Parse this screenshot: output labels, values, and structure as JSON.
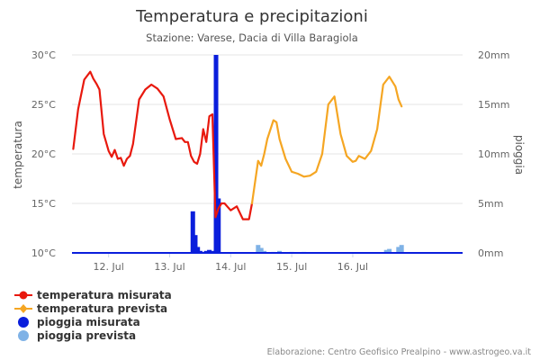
{
  "chart_data": {
    "type": "line",
    "title": "Temperatura e precipitazioni",
    "subtitle": "Stazione: Varese, Dacia di Villa Baragiola",
    "credits": "Elaborazione: Centro Geofisico Prealpino - www.astrogeo.va.it",
    "x_ticks": [
      "12. Jul",
      "13. Jul",
      "14. Jul",
      "15. Jul",
      "16. Jul"
    ],
    "x_tick_days": [
      12,
      13,
      14,
      15,
      16
    ],
    "xlim": [
      11.4,
      17.8
    ],
    "y_left": {
      "label": "temperatura",
      "ticks": [
        "10°C",
        "15°C",
        "20°C",
        "25°C",
        "30°C"
      ],
      "tick_values": [
        10,
        15,
        20,
        25,
        30
      ],
      "range": [
        10,
        30
      ]
    },
    "y_right": {
      "label": "pioggia",
      "ticks": [
        "0mm",
        "5mm",
        "10mm",
        "15mm",
        "20mm"
      ],
      "tick_values": [
        0,
        5,
        10,
        15,
        20
      ],
      "range": [
        0,
        20
      ]
    },
    "grid": true,
    "legend_position": "bottom-left",
    "series": [
      {
        "name": "temperatura misurata",
        "type": "line",
        "axis": "left",
        "color": "#e8190e",
        "marker": "circle",
        "x": [
          11.42,
          11.5,
          11.6,
          11.7,
          11.75,
          11.8,
          11.85,
          11.92,
          12.0,
          12.05,
          12.1,
          12.15,
          12.2,
          12.25,
          12.3,
          12.35,
          12.4,
          12.5,
          12.6,
          12.7,
          12.8,
          12.9,
          13.0,
          13.05,
          13.1,
          13.2,
          13.25,
          13.3,
          13.35,
          13.4,
          13.45,
          13.5,
          13.55,
          13.6,
          13.65,
          13.7,
          13.75,
          13.8,
          13.85,
          13.9,
          14.0,
          14.1,
          14.2,
          14.3,
          14.35
        ],
        "y": [
          20.5,
          24.5,
          27.5,
          28.3,
          27.6,
          27.1,
          26.5,
          22.0,
          20.3,
          19.7,
          20.4,
          19.5,
          19.6,
          18.8,
          19.5,
          19.8,
          21.0,
          25.5,
          26.5,
          27.0,
          26.6,
          25.8,
          23.5,
          22.5,
          21.5,
          21.6,
          21.2,
          21.2,
          19.8,
          19.2,
          19.0,
          20.0,
          22.5,
          21.2,
          23.8,
          24.0,
          13.6,
          14.5,
          15.0,
          15.0,
          14.3,
          14.7,
          13.4,
          13.4,
          15.0
        ]
      },
      {
        "name": "temperatura prevista",
        "type": "line",
        "axis": "left",
        "color": "#f5a623",
        "marker": "diamond",
        "x": [
          14.35,
          14.45,
          14.5,
          14.55,
          14.6,
          14.7,
          14.75,
          14.8,
          14.9,
          15.0,
          15.1,
          15.2,
          15.3,
          15.4,
          15.5,
          15.6,
          15.7,
          15.8,
          15.9,
          16.0,
          16.05,
          16.1,
          16.2,
          16.3,
          16.4,
          16.5,
          16.6,
          16.7,
          16.75,
          16.8
        ],
        "y": [
          15.0,
          19.3,
          18.8,
          20.0,
          21.5,
          23.4,
          23.2,
          21.5,
          19.5,
          18.2,
          18.0,
          17.7,
          17.8,
          18.2,
          20.0,
          25.0,
          25.8,
          22.0,
          19.8,
          19.2,
          19.3,
          19.8,
          19.5,
          20.3,
          22.5,
          27.0,
          27.8,
          26.8,
          25.5,
          24.8
        ]
      },
      {
        "name": "pioggia misurata",
        "type": "column",
        "axis": "right",
        "color": "#0a1edc",
        "x": [
          13.38,
          13.42,
          13.46,
          13.5,
          13.55,
          13.6,
          13.65,
          13.72,
          13.76,
          13.8
        ],
        "y": [
          4.2,
          1.8,
          0.6,
          0.2,
          0.1,
          0.2,
          0.3,
          0.2,
          20.0,
          5.5
        ]
      },
      {
        "name": "pioggia prevista",
        "type": "column",
        "axis": "right",
        "color": "#7fb2e6",
        "x": [
          14.45,
          14.5,
          14.55,
          14.7,
          14.8,
          15.0,
          15.2,
          16.55,
          16.6,
          16.75,
          16.8
        ],
        "y": [
          0.8,
          0.5,
          0.2,
          0.1,
          0.2,
          0.1,
          0.1,
          0.3,
          0.4,
          0.6,
          0.8
        ]
      }
    ]
  }
}
